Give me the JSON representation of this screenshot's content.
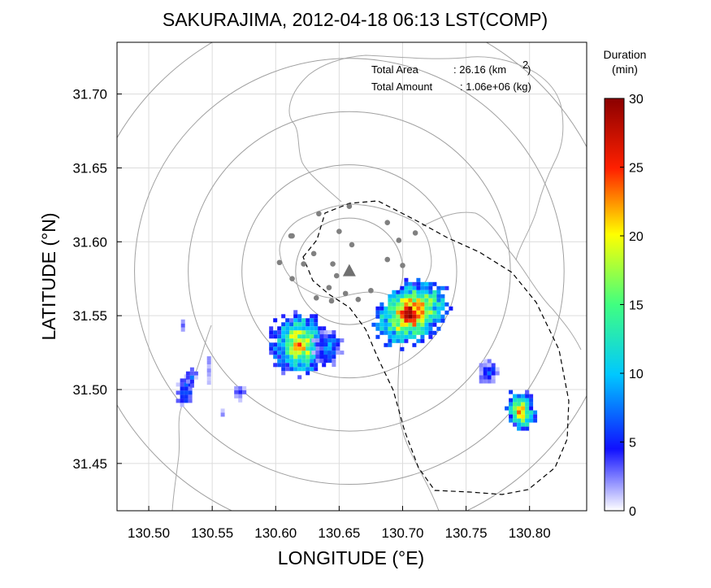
{
  "chart_data": {
    "type": "heatmap",
    "title": "SAKURAJIMA, 2012-04-18 06:13 LST(COMP)",
    "xlabel": "LONGITUDE (°E)",
    "ylabel": "LATITUDE (°N)",
    "xlim": [
      130.475,
      130.845
    ],
    "ylim": [
      31.418,
      31.735
    ],
    "x_ticks": [
      "130.50",
      "130.55",
      "130.60",
      "130.65",
      "130.70",
      "130.75",
      "130.80"
    ],
    "y_ticks": [
      "31.45",
      "31.50",
      "31.55",
      "31.60",
      "31.65",
      "31.70"
    ],
    "grid": true,
    "annotations": {
      "area_label": "Total Area",
      "area_value": ": 26.16 (km",
      "area_sup": "2",
      "area_close": ")",
      "amount_label": "Total Amount",
      "amount_value": ": 1.06e+06 (kg)"
    },
    "colorbar": {
      "title_line1": "Duration",
      "title_line2": "(min)",
      "min": 0,
      "max": 30,
      "ticks": [
        "0",
        "5",
        "10",
        "15",
        "20",
        "25",
        "30"
      ],
      "colors": [
        "#ffffff",
        "#1010ff",
        "#00c8ff",
        "#40ff80",
        "#ffff00",
        "#ff2000",
        "#8b0000"
      ]
    },
    "volcano": {
      "lon": 130.658,
      "lat": 31.58
    },
    "range_rings_center": {
      "lon": 130.658,
      "lat": 31.58
    },
    "range_rings_km": [
      4,
      8,
      12,
      16,
      20
    ],
    "stations": [
      {
        "lon": 130.658,
        "lat": 31.624
      },
      {
        "lon": 130.634,
        "lat": 31.619
      },
      {
        "lon": 130.688,
        "lat": 31.613
      },
      {
        "lon": 130.613,
        "lat": 31.604
      },
      {
        "lon": 130.612,
        "lat": 31.604
      },
      {
        "lon": 130.65,
        "lat": 31.607
      },
      {
        "lon": 130.697,
        "lat": 31.601
      },
      {
        "lon": 130.66,
        "lat": 31.598
      },
      {
        "lon": 130.71,
        "lat": 31.606
      },
      {
        "lon": 130.63,
        "lat": 31.592
      },
      {
        "lon": 130.603,
        "lat": 31.586
      },
      {
        "lon": 130.622,
        "lat": 31.585
      },
      {
        "lon": 130.688,
        "lat": 31.588
      },
      {
        "lon": 130.645,
        "lat": 31.585
      },
      {
        "lon": 130.7,
        "lat": 31.584
      },
      {
        "lon": 130.648,
        "lat": 31.577
      },
      {
        "lon": 130.613,
        "lat": 31.575
      },
      {
        "lon": 130.642,
        "lat": 31.569
      },
      {
        "lon": 130.632,
        "lat": 31.562
      },
      {
        "lon": 130.644,
        "lat": 31.56
      },
      {
        "lon": 130.665,
        "lat": 31.561
      },
      {
        "lon": 130.675,
        "lat": 31.567
      },
      {
        "lon": 130.655,
        "lat": 31.565
      }
    ],
    "cells": [
      {
        "lon": 130.705,
        "lat": 31.553,
        "rlon": 0.03,
        "rlat": 0.019,
        "rot": 35,
        "peak": 29
      },
      {
        "lon": 130.617,
        "lat": 31.532,
        "rlon": 0.022,
        "rlat": 0.021,
        "rot": 0,
        "peak": 23
      },
      {
        "lon": 130.64,
        "lat": 31.53,
        "rlon": 0.011,
        "rlat": 0.012,
        "rot": 0,
        "peak": 10
      },
      {
        "lon": 130.792,
        "lat": 31.487,
        "rlon": 0.011,
        "rlat": 0.014,
        "rot": 10,
        "peak": 24
      },
      {
        "lon": 130.527,
        "lat": 31.5,
        "rlon": 0.006,
        "rlat": 0.01,
        "rot": 0,
        "peak": 9
      },
      {
        "lon": 130.532,
        "lat": 31.51,
        "rlon": 0.004,
        "rlat": 0.006,
        "rot": 0,
        "peak": 7
      },
      {
        "lon": 130.525,
        "lat": 31.545,
        "rlon": 0.003,
        "rlat": 0.004,
        "rot": 0,
        "peak": 5
      },
      {
        "lon": 130.545,
        "lat": 31.515,
        "rlon": 0.002,
        "rlat": 0.01,
        "rot": 0,
        "peak": 5
      },
      {
        "lon": 130.57,
        "lat": 31.5,
        "rlon": 0.004,
        "rlat": 0.006,
        "rot": 0,
        "peak": 5
      },
      {
        "lon": 130.766,
        "lat": 31.513,
        "rlon": 0.008,
        "rlat": 0.008,
        "rot": 0,
        "peak": 7
      },
      {
        "lon": 130.558,
        "lat": 31.486,
        "rlon": 0.002,
        "rlat": 0.003,
        "rot": 0,
        "peak": 4
      }
    ]
  }
}
